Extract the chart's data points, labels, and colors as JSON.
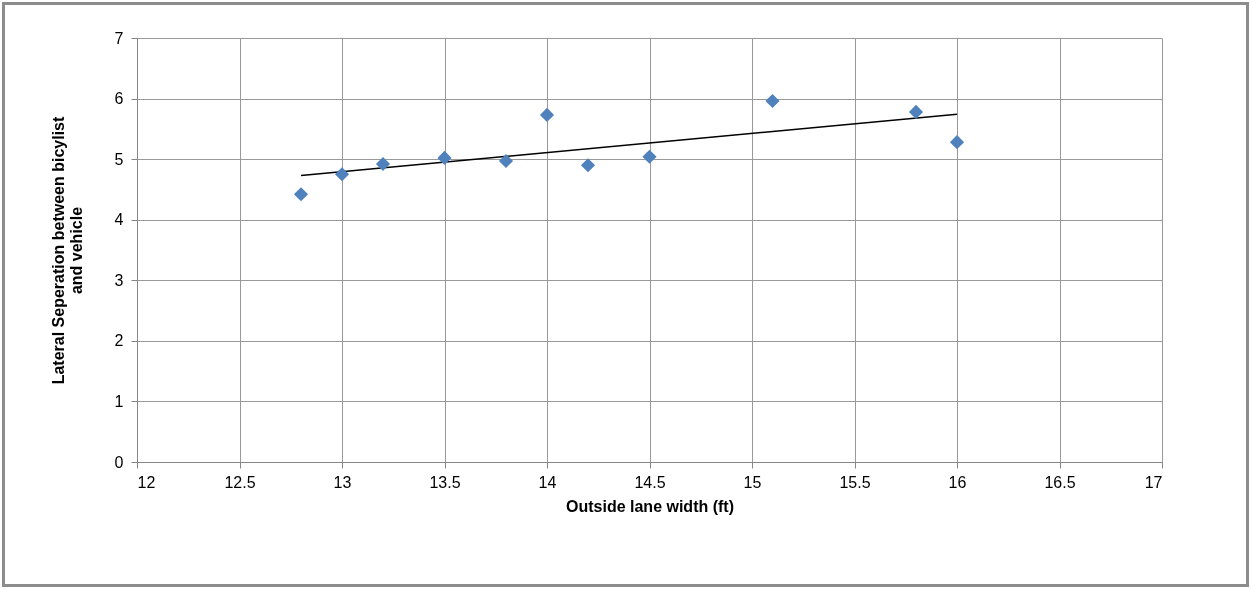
{
  "chart_data": {
    "type": "scatter",
    "xlabel": "Outside lane width (ft)",
    "ylabel": "Lateral Seperation between bicylist and vehicle",
    "xlim": [
      12,
      17
    ],
    "ylim": [
      0,
      7
    ],
    "xticks": [
      12,
      12.5,
      13,
      13.5,
      14,
      14.5,
      15,
      15.5,
      16,
      16.5,
      17
    ],
    "yticks": [
      0,
      1,
      2,
      3,
      4,
      5,
      6,
      7
    ],
    "grid": true,
    "legend": false,
    "series": [
      {
        "color": "#4f81bd",
        "marker": "diamond",
        "x": [
          12.8,
          13.0,
          13.2,
          13.5,
          13.8,
          14.0,
          14.2,
          14.5,
          15.1,
          15.8,
          16.0
        ],
        "values": [
          4.42,
          4.75,
          4.92,
          5.02,
          4.97,
          5.73,
          4.9,
          5.04,
          5.96,
          5.78,
          5.28
        ]
      },
      {
        "type": "line",
        "color": "#000000",
        "marker": "none",
        "x": [
          12.8,
          16.0
        ],
        "values": [
          4.73,
          5.74
        ]
      }
    ]
  }
}
